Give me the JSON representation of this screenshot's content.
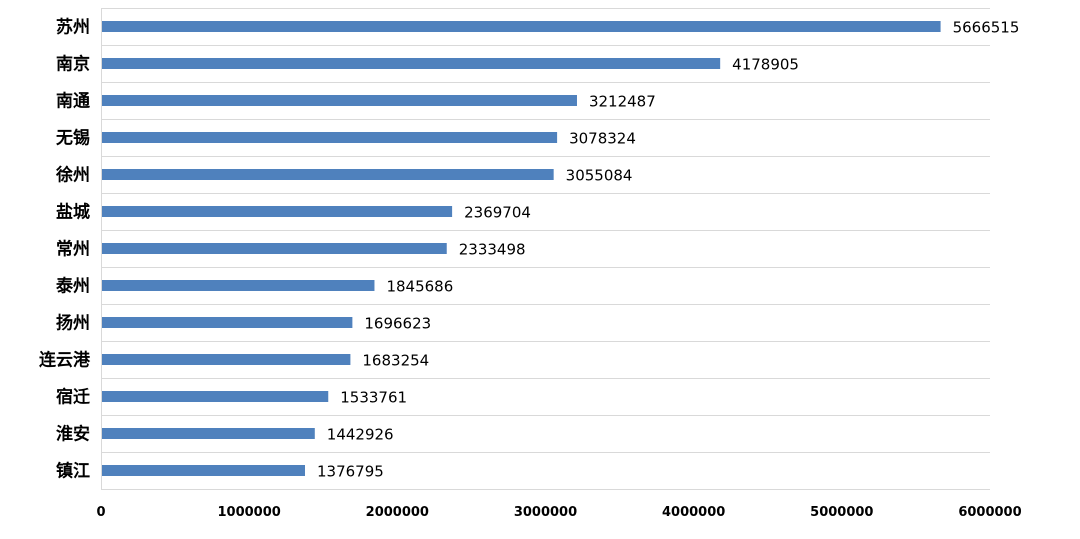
{
  "chart_data": {
    "type": "bar",
    "orientation": "horizontal",
    "categories": [
      "苏州",
      "南京",
      "南通",
      "无锡",
      "徐州",
      "盐城",
      "常州",
      "泰州",
      "扬州",
      "连云港",
      "宿迁",
      "淮安",
      "镇江"
    ],
    "values": [
      5666515,
      4178905,
      3212487,
      3078324,
      3055084,
      2369704,
      2333498,
      1845686,
      1696623,
      1683254,
      1533761,
      1442926,
      1376795
    ],
    "xlim": [
      0,
      6000000
    ],
    "xticks": [
      0,
      1000000,
      2000000,
      3000000,
      4000000,
      5000000,
      6000000
    ],
    "xtick_labels": [
      "0",
      "1000000",
      "2000000",
      "3000000",
      "4000000",
      "5000000",
      "6000000"
    ],
    "data_labels": true,
    "grid": "horizontal",
    "bar_color": "#4F81BD",
    "grid_color": "#D9D9D9",
    "title": "",
    "xlabel": "",
    "ylabel": ""
  }
}
